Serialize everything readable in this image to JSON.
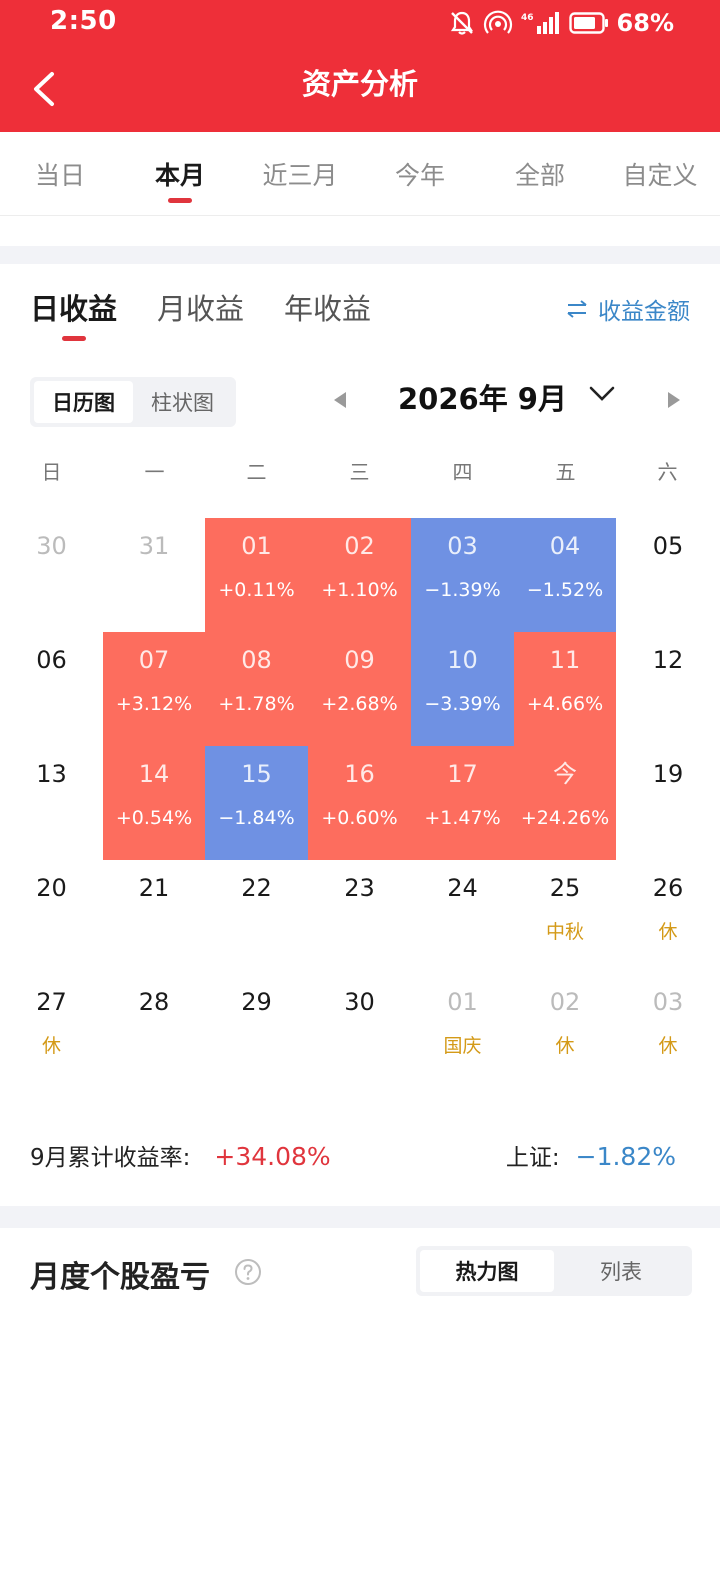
{
  "status_bar": {
    "time": "2:50",
    "battery": "68%"
  },
  "header": {
    "title": "资产分析"
  },
  "period_tabs": [
    {
      "label": "当日",
      "active": false
    },
    {
      "label": "本月",
      "active": true
    },
    {
      "label": "近三月",
      "active": false
    },
    {
      "label": "今年",
      "active": false
    },
    {
      "label": "全部",
      "active": false
    },
    {
      "label": "自定义",
      "active": false
    }
  ],
  "sub_tabs": [
    {
      "label": "日收益",
      "active": true
    },
    {
      "label": "月收益",
      "active": false
    },
    {
      "label": "年收益",
      "active": false
    }
  ],
  "toggle_amount_label": "收益金额",
  "view_toggle": {
    "calendar": "日历图",
    "bar": "柱状图",
    "active": "calendar"
  },
  "month_label": "2026年 9月",
  "weekdays": [
    "日",
    "一",
    "二",
    "三",
    "四",
    "五",
    "六"
  ],
  "calendar": [
    [
      {
        "day": "30",
        "inactive": true
      },
      {
        "day": "31",
        "inactive": true
      },
      {
        "day": "01",
        "sub": "+0.11%",
        "state": "up"
      },
      {
        "day": "02",
        "sub": "+1.10%",
        "state": "up"
      },
      {
        "day": "03",
        "sub": "−1.39%",
        "state": "down"
      },
      {
        "day": "04",
        "sub": "−1.52%",
        "state": "down"
      },
      {
        "day": "05"
      }
    ],
    [
      {
        "day": "06"
      },
      {
        "day": "07",
        "sub": "+3.12%",
        "state": "up"
      },
      {
        "day": "08",
        "sub": "+1.78%",
        "state": "up"
      },
      {
        "day": "09",
        "sub": "+2.68%",
        "state": "up"
      },
      {
        "day": "10",
        "sub": "−3.39%",
        "state": "down"
      },
      {
        "day": "11",
        "sub": "+4.66%",
        "state": "up"
      },
      {
        "day": "12"
      }
    ],
    [
      {
        "day": "13"
      },
      {
        "day": "14",
        "sub": "+0.54%",
        "state": "up"
      },
      {
        "day": "15",
        "sub": "−1.84%",
        "state": "down"
      },
      {
        "day": "16",
        "sub": "+0.60%",
        "state": "up"
      },
      {
        "day": "17",
        "sub": "+1.47%",
        "state": "up"
      },
      {
        "day": "今",
        "sub": "+24.26%",
        "state": "up"
      },
      {
        "day": "19"
      }
    ],
    [
      {
        "day": "20"
      },
      {
        "day": "21"
      },
      {
        "day": "22"
      },
      {
        "day": "23"
      },
      {
        "day": "24"
      },
      {
        "day": "25",
        "sub": "中秋",
        "holiday": true
      },
      {
        "day": "26",
        "sub": "休",
        "holiday": true
      }
    ],
    [
      {
        "day": "27",
        "sub": "休",
        "holiday": true
      },
      {
        "day": "28"
      },
      {
        "day": "29"
      },
      {
        "day": "30"
      },
      {
        "day": "01",
        "sub": "国庆",
        "holiday": true,
        "inactive": true
      },
      {
        "day": "02",
        "sub": "休",
        "holiday": true,
        "inactive": true
      },
      {
        "day": "03",
        "sub": "休",
        "holiday": true,
        "inactive": true
      }
    ]
  ],
  "summary": {
    "cumulative_label": "9月累计收益率:",
    "cumulative_value": "+34.08%",
    "index_label": "上证:",
    "index_value": "−1.82%"
  },
  "monthly_section": {
    "title": "月度个股盈亏",
    "heatmap": "热力图",
    "list": "列表",
    "active": "heatmap"
  },
  "colors": {
    "header": "#ee2f39",
    "up": "#fd6d5e",
    "down": "#6f91e3",
    "holiday": "#d49a18",
    "link": "#3b87c8"
  }
}
